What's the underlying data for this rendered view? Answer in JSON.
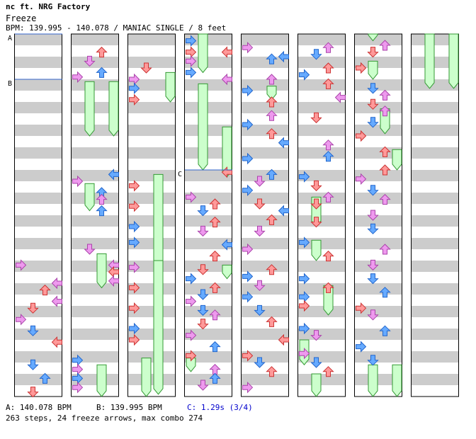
{
  "song": {
    "title": "nc ft. NRG Factory",
    "subtitle": "Freeze",
    "bpm_line": "BPM: 139.995 - 140.078 / MANIAC SINGLE / 8 feet"
  },
  "markers": {
    "a": "A",
    "b": "B",
    "c": "C"
  },
  "footer": {
    "a": "A: 140.078 BPM",
    "b": "B: 139.995 BPM",
    "c": "C: 1.29s (3/4)",
    "stats": "263 steps, 24 freeze arrows, max combo 274"
  },
  "colors": {
    "red_arrow": "#ff9999",
    "blue_arrow": "#66aaff",
    "purple_arrow": "#ee99ee",
    "freeze": "#ccffcc",
    "freeze_border": "#339933",
    "stripe": "#cccccc",
    "marker_line": "#3366cc"
  },
  "chart_data": {
    "type": "step-chart",
    "columns": 8,
    "measures_per_column": 8,
    "lanes": [
      "left",
      "down",
      "up",
      "right"
    ],
    "notes": [
      [
        0,
        5.1,
        0
      ],
      [
        0,
        5.5,
        3
      ],
      [
        0,
        5.65,
        2
      ],
      [
        0,
        5.9,
        3
      ],
      [
        0,
        6.05,
        1
      ],
      [
        0,
        6.3,
        0
      ],
      [
        0,
        6.55,
        1
      ],
      [
        0,
        6.8,
        3
      ],
      [
        0,
        7.3,
        1
      ],
      [
        0,
        7.6,
        2
      ],
      [
        0,
        7.9,
        1
      ],
      [
        1,
        0.4,
        2
      ],
      [
        1,
        0.6,
        1
      ],
      [
        1,
        0.85,
        2
      ],
      [
        1,
        0.95,
        0
      ],
      [
        1,
        3.1,
        3
      ],
      [
        1,
        3.25,
        0
      ],
      [
        1,
        3.5,
        2
      ],
      [
        1,
        3.65,
        2
      ],
      [
        1,
        3.9,
        2
      ],
      [
        1,
        4.75,
        1
      ],
      [
        1,
        5.1,
        3
      ],
      [
        1,
        5.25,
        3
      ],
      [
        1,
        5.45,
        3
      ],
      [
        1,
        7.2,
        0
      ],
      [
        1,
        7.4,
        0
      ],
      [
        1,
        7.6,
        0
      ],
      [
        1,
        7.8,
        0
      ],
      [
        2,
        0.75,
        1
      ],
      [
        2,
        1.0,
        0
      ],
      [
        2,
        1.2,
        0
      ],
      [
        2,
        1.45,
        0
      ],
      [
        2,
        3.35,
        0
      ],
      [
        2,
        3.8,
        0
      ],
      [
        2,
        4.25,
        0
      ],
      [
        2,
        4.6,
        0
      ],
      [
        2,
        5.15,
        0
      ],
      [
        2,
        5.6,
        0
      ],
      [
        2,
        6.05,
        0
      ],
      [
        2,
        6.5,
        0
      ],
      [
        2,
        6.75,
        0
      ],
      [
        3,
        0.15,
        0
      ],
      [
        3,
        0.4,
        0
      ],
      [
        3,
        0.6,
        0
      ],
      [
        3,
        0.85,
        0
      ],
      [
        3,
        0.4,
        3
      ],
      [
        3,
        1.0,
        3
      ],
      [
        3,
        3.05,
        3
      ],
      [
        3,
        3.6,
        0
      ],
      [
        3,
        3.75,
        2
      ],
      [
        3,
        3.9,
        1
      ],
      [
        3,
        4.15,
        2
      ],
      [
        3,
        4.35,
        1
      ],
      [
        3,
        4.65,
        3
      ],
      [
        3,
        4.9,
        2
      ],
      [
        3,
        5.2,
        1
      ],
      [
        3,
        5.4,
        0
      ],
      [
        3,
        5.6,
        2
      ],
      [
        3,
        5.75,
        1
      ],
      [
        3,
        5.9,
        0
      ],
      [
        3,
        6.1,
        1
      ],
      [
        3,
        6.2,
        2
      ],
      [
        3,
        6.4,
        1
      ],
      [
        3,
        6.65,
        0
      ],
      [
        3,
        6.9,
        2
      ],
      [
        3,
        7.1,
        0
      ],
      [
        3,
        7.4,
        2
      ],
      [
        3,
        7.6,
        2
      ],
      [
        3,
        7.75,
        1
      ],
      [
        4,
        0.3,
        0
      ],
      [
        4,
        0.55,
        2
      ],
      [
        4,
        0.5,
        3
      ],
      [
        4,
        1.0,
        2
      ],
      [
        4,
        1.25,
        0
      ],
      [
        4,
        1.5,
        2
      ],
      [
        4,
        1.8,
        2
      ],
      [
        4,
        2.0,
        0
      ],
      [
        4,
        2.2,
        2
      ],
      [
        4,
        2.4,
        3
      ],
      [
        4,
        2.75,
        0
      ],
      [
        4,
        3.1,
        2
      ],
      [
        4,
        3.25,
        1
      ],
      [
        4,
        3.45,
        0
      ],
      [
        4,
        3.75,
        1
      ],
      [
        4,
        3.9,
        3
      ],
      [
        4,
        4.1,
        2
      ],
      [
        4,
        4.35,
        1
      ],
      [
        4,
        4.75,
        0
      ],
      [
        4,
        5.2,
        2
      ],
      [
        4,
        5.35,
        0
      ],
      [
        4,
        5.55,
        1
      ],
      [
        4,
        5.8,
        0
      ],
      [
        4,
        6.1,
        1
      ],
      [
        4,
        6.35,
        2
      ],
      [
        4,
        6.75,
        3
      ],
      [
        4,
        7.1,
        0
      ],
      [
        4,
        7.25,
        1
      ],
      [
        4,
        7.45,
        2
      ],
      [
        4,
        7.8,
        0
      ],
      [
        5,
        0.3,
        2
      ],
      [
        5,
        0.45,
        1
      ],
      [
        5,
        0.75,
        2
      ],
      [
        5,
        0.9,
        0
      ],
      [
        5,
        1.1,
        2
      ],
      [
        5,
        1.4,
        3
      ],
      [
        5,
        1.85,
        1
      ],
      [
        5,
        2.45,
        2
      ],
      [
        5,
        2.7,
        2
      ],
      [
        5,
        3.15,
        0
      ],
      [
        5,
        3.35,
        1
      ],
      [
        5,
        3.6,
        2
      ],
      [
        5,
        3.75,
        1
      ],
      [
        5,
        4.15,
        1
      ],
      [
        5,
        4.6,
        0
      ],
      [
        5,
        4.9,
        2
      ],
      [
        5,
        5.4,
        0
      ],
      [
        5,
        5.6,
        2
      ],
      [
        5,
        5.8,
        0
      ],
      [
        5,
        6.0,
        0
      ],
      [
        5,
        6.5,
        0
      ],
      [
        5,
        6.65,
        1
      ],
      [
        5,
        7.05,
        0
      ],
      [
        5,
        7.25,
        1
      ],
      [
        5,
        7.45,
        2
      ],
      [
        6,
        0.25,
        2
      ],
      [
        6,
        0.4,
        1
      ],
      [
        6,
        0.75,
        0
      ],
      [
        6,
        1.2,
        1
      ],
      [
        6,
        1.35,
        2
      ],
      [
        6,
        1.55,
        1
      ],
      [
        6,
        1.7,
        2
      ],
      [
        6,
        1.95,
        1
      ],
      [
        6,
        2.25,
        0
      ],
      [
        6,
        2.6,
        2
      ],
      [
        6,
        3.0,
        2
      ],
      [
        6,
        3.2,
        0
      ],
      [
        6,
        3.45,
        1
      ],
      [
        6,
        3.65,
        2
      ],
      [
        6,
        4.0,
        1
      ],
      [
        6,
        4.3,
        1
      ],
      [
        6,
        4.75,
        2
      ],
      [
        6,
        5.1,
        1
      ],
      [
        6,
        5.4,
        1
      ],
      [
        6,
        5.7,
        2
      ],
      [
        6,
        6.05,
        0
      ],
      [
        6,
        6.2,
        1
      ],
      [
        6,
        6.55,
        2
      ],
      [
        6,
        6.9,
        0
      ],
      [
        6,
        7.2,
        1
      ]
    ],
    "freezes": [
      [
        1,
        1.05,
        2.25,
        1
      ],
      [
        1,
        1.05,
        2.25,
        3
      ],
      [
        1,
        3.3,
        3.9,
        1
      ],
      [
        1,
        4.85,
        5.6,
        2
      ],
      [
        1,
        7.3,
        8.0,
        2
      ],
      [
        2,
        0.85,
        1.5,
        3
      ],
      [
        2,
        3.1,
        5.8,
        2
      ],
      [
        2,
        5.0,
        7.95,
        2
      ],
      [
        2,
        7.15,
        8.0,
        1
      ],
      [
        3,
        0.0,
        0.85,
        1
      ],
      [
        3,
        1.1,
        3.0,
        1
      ],
      [
        3,
        2.05,
        3.15,
        3
      ],
      [
        3,
        5.1,
        5.4,
        3
      ],
      [
        3,
        7.15,
        7.45,
        0
      ],
      [
        4,
        1.15,
        1.45,
        2
      ],
      [
        5,
        3.6,
        4.25,
        1
      ],
      [
        5,
        4.55,
        5.0,
        1
      ],
      [
        5,
        5.55,
        6.2,
        2
      ],
      [
        5,
        6.75,
        7.3,
        0
      ],
      [
        5,
        7.5,
        8.0,
        1
      ],
      [
        6,
        0.0,
        0.15,
        1
      ],
      [
        6,
        0.6,
        1.0,
        1
      ],
      [
        6,
        1.65,
        2.2,
        2
      ],
      [
        6,
        2.55,
        3.0,
        3
      ],
      [
        6,
        7.3,
        8.0,
        1
      ],
      [
        6,
        7.3,
        8.0,
        3
      ],
      [
        7,
        0.0,
        1.2,
        1
      ],
      [
        7,
        0.0,
        1.2,
        3
      ]
    ]
  }
}
